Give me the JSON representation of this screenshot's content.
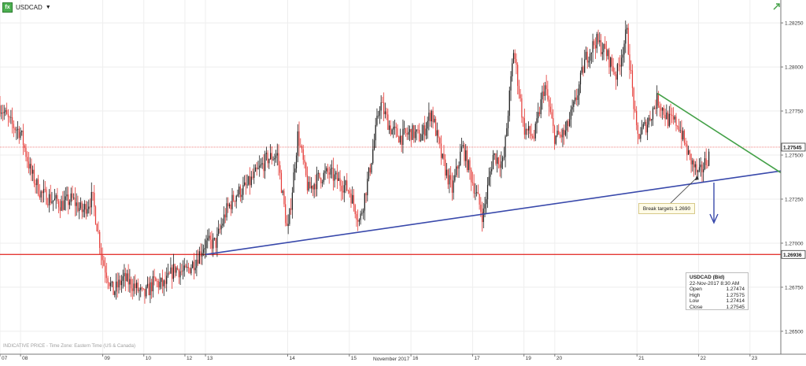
{
  "header": {
    "symbol": "USDCAD",
    "caret": "▼"
  },
  "footer_note": "INDICATIVE PRICE - Time Zone: Eastern Time (US & Canada)",
  "month_label": "November 2017",
  "annotation": {
    "text": "Break targets 1.2690"
  },
  "legend": {
    "title": "USDCAD (Bid)",
    "datetime": "22-Nov-2017 8:30 AM",
    "rows": [
      {
        "label": "Open",
        "value": "1.27474"
      },
      {
        "label": "High",
        "value": "1.27575"
      },
      {
        "label": "Low",
        "value": "1.27414"
      },
      {
        "label": "Close",
        "value": "1.27545"
      }
    ]
  },
  "colors": {
    "up": "#1a1a1a",
    "down": "#e53935",
    "support": "#3949ab",
    "resistance": "#43a047",
    "hline": "#e53935",
    "grid": "#eeeeee",
    "arrow": "#3949ab"
  },
  "icons": {
    "expand": "diagonal-arrow-icon",
    "fx": "fx-icon"
  },
  "chart_data": {
    "type": "candlestick",
    "y_ticks": [
      1.2825,
      1.28,
      1.2775,
      1.275,
      1.2725,
      1.27,
      1.2675,
      1.265
    ],
    "y_tick_labels": [
      "1.28250",
      "1.28000",
      "1.27750",
      "1.27500",
      "1.27250",
      "1.27000",
      "1.26750",
      "1.26500"
    ],
    "ylim": [
      1.2637,
      1.2838
    ],
    "x_labels": [
      "07",
      "08",
      "09",
      "10",
      "12",
      "13",
      "14",
      "15",
      "16",
      "17",
      "19",
      "20",
      "21",
      "22",
      "23"
    ],
    "x_label_index": [
      0,
      2,
      10,
      14,
      18,
      20,
      28,
      34,
      40,
      46,
      51,
      54,
      62,
      68,
      73
    ],
    "xlim": [
      0,
      76
    ],
    "price_tags": [
      {
        "label": "1.27545",
        "value": 1.27545,
        "style": "dotted"
      },
      {
        "label": "1.26936",
        "value": 1.26936,
        "style": "solid"
      }
    ],
    "close_anchors": [
      [
        0,
        1.2778
      ],
      [
        1,
        1.2768
      ],
      [
        2,
        1.2763
      ],
      [
        3,
        1.274
      ],
      [
        4,
        1.2728
      ],
      [
        5,
        1.2725
      ],
      [
        6,
        1.2722
      ],
      [
        7,
        1.2725
      ],
      [
        8,
        1.2718
      ],
      [
        9,
        1.2726
      ],
      [
        10,
        1.269
      ],
      [
        11,
        1.2672
      ],
      [
        12,
        1.268
      ],
      [
        13,
        1.2676
      ],
      [
        14,
        1.267
      ],
      [
        15,
        1.2678
      ],
      [
        16,
        1.2676
      ],
      [
        17,
        1.2686
      ],
      [
        18,
        1.2683
      ],
      [
        19,
        1.269
      ],
      [
        20,
        1.27
      ],
      [
        21,
        1.27
      ],
      [
        22,
        1.2718
      ],
      [
        23,
        1.2728
      ],
      [
        24,
        1.2732
      ],
      [
        25,
        1.274
      ],
      [
        26,
        1.2748
      ],
      [
        27,
        1.275
      ],
      [
        28,
        1.2705
      ],
      [
        29,
        1.2762
      ],
      [
        30,
        1.273
      ],
      [
        31,
        1.2737
      ],
      [
        32,
        1.274
      ],
      [
        33,
        1.2735
      ],
      [
        34,
        1.273
      ],
      [
        35,
        1.2712
      ],
      [
        36,
        1.2742
      ],
      [
        37,
        1.278
      ],
      [
        38,
        1.2765
      ],
      [
        39,
        1.276
      ],
      [
        40,
        1.2763
      ],
      [
        41,
        1.276
      ],
      [
        42,
        1.2775
      ],
      [
        43,
        1.2748
      ],
      [
        44,
        1.273
      ],
      [
        45,
        1.2755
      ],
      [
        46,
        1.2735
      ],
      [
        47,
        1.2715
      ],
      [
        48,
        1.275
      ],
      [
        49,
        1.2745
      ],
      [
        50,
        1.281
      ],
      [
        51,
        1.2765
      ],
      [
        52,
        1.276
      ],
      [
        53,
        1.279
      ],
      [
        54,
        1.276
      ],
      [
        55,
        1.2762
      ],
      [
        56,
        1.278
      ],
      [
        57,
        1.2805
      ],
      [
        58,
        1.2815
      ],
      [
        59,
        1.2808
      ],
      [
        60,
        1.2795
      ],
      [
        61,
        1.282
      ],
      [
        62,
        1.276
      ],
      [
        63,
        1.2768
      ],
      [
        64,
        1.2782
      ],
      [
        65,
        1.277
      ],
      [
        66,
        1.2768
      ],
      [
        67,
        1.275
      ],
      [
        68,
        1.2738
      ],
      [
        69,
        1.275
      ]
    ],
    "support_line": {
      "from": [
        20,
        1.26936
      ],
      "to": [
        76,
        1.2741
      ]
    },
    "resistance_line": {
      "from": [
        64,
        1.2785
      ],
      "to": [
        76,
        1.274
      ]
    },
    "horizontal_lines": [
      1.26936,
      1.27545
    ]
  }
}
